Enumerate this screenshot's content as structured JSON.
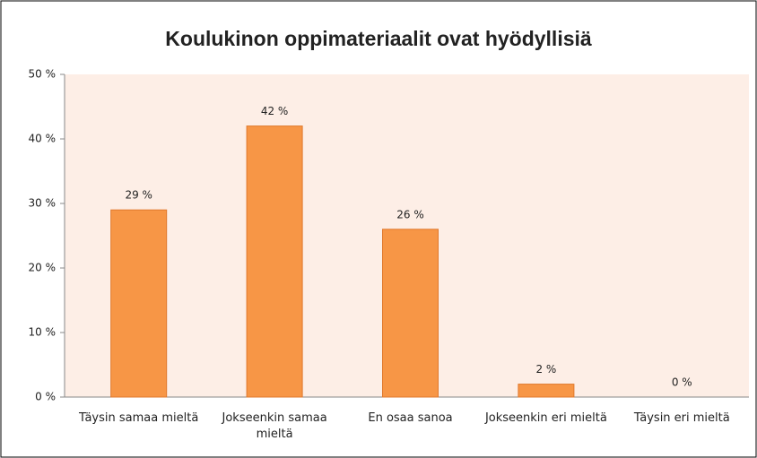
{
  "chart_data": {
    "type": "bar",
    "title": "Koulukinon oppimateriaalit ovat hyödyllisiä",
    "categories": [
      "Täysin samaa mieltä",
      "Jokseenkin samaa mieltä",
      "En osaa sanoa",
      "Jokseenkin eri mieltä",
      "Täysin eri mieltä"
    ],
    "values": [
      29,
      42,
      26,
      2,
      0
    ],
    "value_labels": [
      "29 %",
      "42 %",
      "26 %",
      "2 %",
      "0 %"
    ],
    "color": "#f79646",
    "ylim": [
      0,
      50
    ],
    "yticks": [
      {
        "value": 0,
        "label": "0 %"
      },
      {
        "value": 10,
        "label": "10 %"
      },
      {
        "value": 20,
        "label": "20 %"
      },
      {
        "value": 30,
        "label": "30 %"
      },
      {
        "value": 40,
        "label": "40 %"
      },
      {
        "value": 50,
        "label": "50 %"
      }
    ],
    "grid": false
  }
}
